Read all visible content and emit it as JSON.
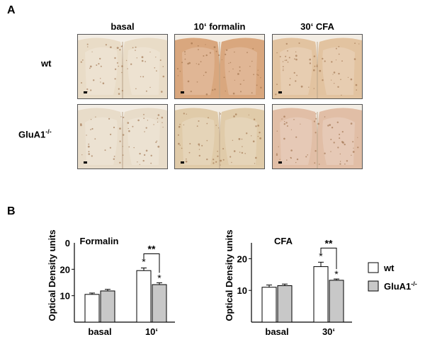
{
  "panel_a": {
    "letter": "A",
    "columns": [
      "basal",
      "10‘ formalin",
      "30‘ CFA"
    ],
    "rows": [
      {
        "label": "wt",
        "superscript": ""
      },
      {
        "label": "GluA1",
        "superscript": "-/-"
      }
    ],
    "tile_tints": [
      [
        "#e9dcc7",
        "#d9a77e",
        "#e2c3a0"
      ],
      [
        "#e8dcc9",
        "#e0cba9",
        "#e1bea6"
      ]
    ]
  },
  "panel_b": {
    "letter": "B",
    "legend": [
      {
        "label": "wt",
        "superscript": "",
        "color": "#ffffff"
      },
      {
        "label": "GluA1",
        "superscript": "-/-",
        "color": "#c8c8c8"
      }
    ]
  },
  "chart_data": [
    {
      "type": "bar",
      "title": "Formalin",
      "ylabel": "Optical Density units",
      "categories": [
        "basal",
        "10‘"
      ],
      "series": [
        {
          "name": "wt",
          "values": [
            10.5,
            19.5
          ],
          "errors": [
            0.5,
            1.0
          ]
        },
        {
          "name": "GluA1-/-",
          "values": [
            11.8,
            14.2
          ],
          "errors": [
            0.6,
            0.7
          ]
        }
      ],
      "ylim": [
        0,
        30
      ],
      "yticks": [
        10,
        20
      ],
      "ytick_labels": [
        "10",
        "20"
      ],
      "top_tick_label": "0",
      "annotations": {
        "star_wt": "*",
        "star_ko": "*",
        "bracket": "**"
      }
    },
    {
      "type": "bar",
      "title": "CFA",
      "ylabel": "Optical Density units",
      "categories": [
        "basal",
        "30‘"
      ],
      "series": [
        {
          "name": "wt",
          "values": [
            11.0,
            17.5
          ],
          "errors": [
            0.7,
            1.4
          ]
        },
        {
          "name": "GluA1-/-",
          "values": [
            11.5,
            13.2
          ],
          "errors": [
            0.5,
            0.4
          ]
        }
      ],
      "ylim": [
        0,
        25
      ],
      "yticks": [
        10,
        20
      ],
      "ytick_labels": [
        "10",
        "20"
      ],
      "top_tick_label": "",
      "annotations": {
        "star_wt": "*",
        "star_ko": "*",
        "bracket": "**"
      }
    }
  ]
}
